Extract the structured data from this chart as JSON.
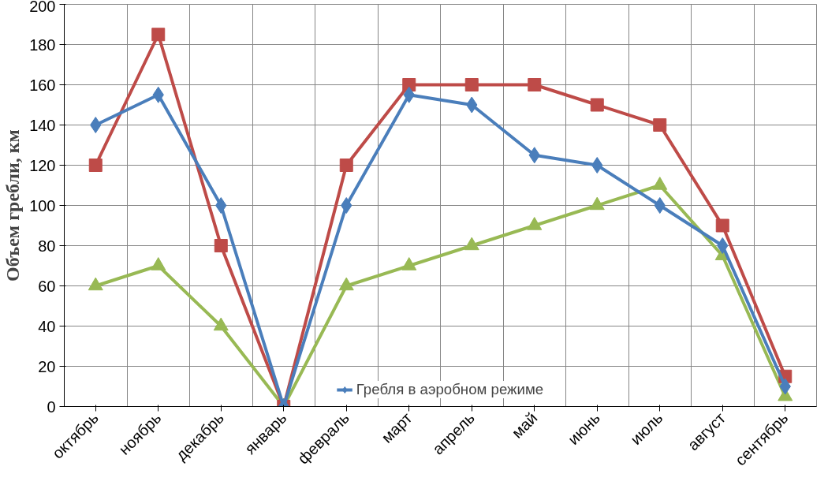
{
  "chart_data": {
    "type": "line",
    "ylabel": "Объем гребли, км",
    "categories": [
      "октябрь",
      "ноябрь",
      "декабрь",
      "январь",
      "февраль",
      "март",
      "апрель",
      "май",
      "июнь",
      "июль",
      "август",
      "сентябрь"
    ],
    "series": [
      {
        "name": "Гребля в аэробном режиме",
        "color": "#4a7ebb",
        "marker": "diamond",
        "values": [
          140,
          155,
          100,
          0,
          100,
          155,
          150,
          125,
          120,
          100,
          80,
          10
        ]
      },
      {
        "color": "#be4b48",
        "marker": "square",
        "values": [
          120,
          185,
          80,
          0,
          120,
          160,
          160,
          160,
          150,
          140,
          90,
          15
        ]
      },
      {
        "color": "#98b954",
        "marker": "triangle",
        "values": [
          60,
          70,
          40,
          0,
          60,
          70,
          80,
          90,
          100,
          110,
          75,
          5
        ]
      }
    ],
    "ylim": [
      0,
      200
    ],
    "yticks": [
      0,
      20,
      40,
      60,
      80,
      100,
      120,
      140,
      160,
      180,
      200
    ],
    "grid": true,
    "legend": "bottom",
    "line_style": "solid"
  }
}
